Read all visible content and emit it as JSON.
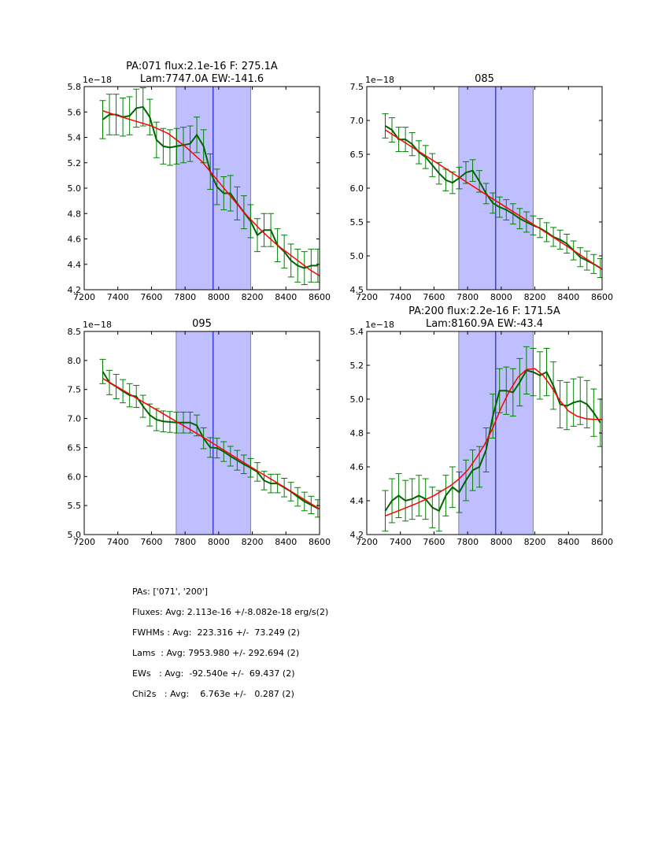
{
  "figure": {
    "summary": [
      "PAs: ['071', '200']",
      "Fluxes: Avg: 2.113e-16 +/-8.082e-18 erg/s(2)",
      "FWHMs : Avg:  223.316 +/-  73.249 (2)",
      "Lams  : Avg: 7953.980 +/- 292.694 (2)",
      "EWs   : Avg:  -92.540e +/-  69.437 (2)",
      "Chi2s   : Avg:    6.763e +/-   0.287 (2)"
    ],
    "colors": {
      "data": "#006400",
      "errorbar": "#008000",
      "fit": "#ff0000",
      "band": "#bfbfff",
      "band_edge": "#8080a0",
      "center_line": "#0000cc"
    }
  },
  "chart_data": [
    {
      "type": "line",
      "title": [
        "PA:071 flux:2.1e-16 F: 275.1A",
        "Lam:7747.0A EW:-141.6"
      ],
      "xlabel": "",
      "ylabel": "",
      "offset_label": "1e−18",
      "xlim": [
        7200,
        8600
      ],
      "ylim": [
        4.2,
        5.8
      ],
      "xticks": [
        7200,
        7400,
        7600,
        7800,
        8000,
        8200,
        8400,
        8600
      ],
      "yticks": [
        "4.2",
        "4.4",
        "4.6",
        "4.8",
        "5.0",
        "5.2",
        "5.4",
        "5.6",
        "5.8"
      ],
      "band": [
        7747,
        8190
      ],
      "center_line": 7967,
      "x": [
        7310,
        7350,
        7390,
        7430,
        7470,
        7510,
        7550,
        7590,
        7630,
        7670,
        7710,
        7750,
        7790,
        7830,
        7870,
        7910,
        7950,
        7990,
        8030,
        8070,
        8110,
        8150,
        8190,
        8230,
        8270,
        8310,
        8350,
        8390,
        8430,
        8470,
        8510,
        8550,
        8590
      ],
      "series": [
        {
          "name": "data",
          "values": [
            5.54,
            5.58,
            5.58,
            5.56,
            5.57,
            5.63,
            5.64,
            5.56,
            5.38,
            5.33,
            5.32,
            5.33,
            5.34,
            5.35,
            5.42,
            5.33,
            5.13,
            5.01,
            4.96,
            4.96,
            4.88,
            4.81,
            4.74,
            4.63,
            4.67,
            4.67,
            4.55,
            4.5,
            4.43,
            4.39,
            4.37,
            4.39,
            4.39
          ],
          "errors": [
            0.15,
            0.16,
            0.16,
            0.15,
            0.15,
            0.15,
            0.15,
            0.14,
            0.14,
            0.14,
            0.14,
            0.14,
            0.14,
            0.14,
            0.14,
            0.13,
            0.14,
            0.14,
            0.13,
            0.14,
            0.13,
            0.13,
            0.13,
            0.13,
            0.13,
            0.13,
            0.13,
            0.13,
            0.13,
            0.13,
            0.13,
            0.13,
            0.13
          ]
        },
        {
          "name": "fit",
          "x": [
            7310,
            7400,
            7500,
            7600,
            7700,
            7750,
            7800,
            7850,
            7900,
            7950,
            8000,
            8050,
            8100,
            8150,
            8200,
            8250,
            8300,
            8350,
            8400,
            8450,
            8500,
            8550,
            8600
          ],
          "values": [
            5.61,
            5.57,
            5.53,
            5.49,
            5.43,
            5.38,
            5.33,
            5.27,
            5.21,
            5.13,
            5.05,
            4.97,
            4.89,
            4.81,
            4.74,
            4.67,
            4.61,
            4.55,
            4.5,
            4.45,
            4.4,
            4.35,
            4.31
          ]
        }
      ]
    },
    {
      "type": "line",
      "title": [
        "085"
      ],
      "offset_label": "1e−18",
      "xlim": [
        7200,
        8600
      ],
      "ylim": [
        4.5,
        7.5
      ],
      "xticks": [
        7200,
        7400,
        7600,
        7800,
        8000,
        8200,
        8400,
        8600
      ],
      "yticks": [
        "4.5",
        "5.0",
        "5.5",
        "6.0",
        "6.5",
        "7.0",
        "7.5"
      ],
      "band": [
        7747,
        8190
      ],
      "center_line": 7967,
      "x": [
        7310,
        7350,
        7390,
        7430,
        7470,
        7510,
        7550,
        7590,
        7630,
        7670,
        7710,
        7750,
        7790,
        7830,
        7870,
        7910,
        7950,
        7990,
        8030,
        8070,
        8110,
        8150,
        8190,
        8230,
        8270,
        8310,
        8350,
        8390,
        8430,
        8470,
        8510,
        8550,
        8590
      ],
      "series": [
        {
          "name": "data",
          "values": [
            6.92,
            6.86,
            6.72,
            6.72,
            6.65,
            6.53,
            6.46,
            6.34,
            6.22,
            6.12,
            6.08,
            6.15,
            6.23,
            6.26,
            6.1,
            5.92,
            5.78,
            5.72,
            5.68,
            5.62,
            5.55,
            5.5,
            5.45,
            5.41,
            5.35,
            5.28,
            5.24,
            5.18,
            5.08,
            4.98,
            4.93,
            4.88,
            4.82
          ],
          "errors": [
            0.18,
            0.18,
            0.18,
            0.18,
            0.17,
            0.17,
            0.17,
            0.17,
            0.16,
            0.16,
            0.16,
            0.16,
            0.16,
            0.16,
            0.16,
            0.15,
            0.15,
            0.15,
            0.15,
            0.15,
            0.15,
            0.15,
            0.14,
            0.14,
            0.14,
            0.14,
            0.14,
            0.14,
            0.14,
            0.14,
            0.14,
            0.14,
            0.14
          ]
        },
        {
          "name": "fit",
          "x": [
            7310,
            7600,
            7900,
            8200,
            8400,
            8600
          ],
          "values": [
            6.86,
            6.4,
            5.92,
            5.45,
            5.13,
            4.8
          ]
        }
      ]
    },
    {
      "type": "line",
      "title": [
        "095"
      ],
      "offset_label": "1e−18",
      "xlim": [
        7200,
        8600
      ],
      "ylim": [
        5.0,
        8.5
      ],
      "xticks": [
        7200,
        7400,
        7600,
        7800,
        8000,
        8200,
        8400,
        8600
      ],
      "yticks": [
        "5.0",
        "5.5",
        "6.0",
        "6.5",
        "7.0",
        "7.5",
        "8.0",
        "8.5"
      ],
      "band": [
        7747,
        8190
      ],
      "center_line": 7967,
      "x": [
        7310,
        7350,
        7390,
        7430,
        7470,
        7510,
        7550,
        7590,
        7630,
        7670,
        7710,
        7750,
        7790,
        7830,
        7870,
        7910,
        7950,
        7990,
        8030,
        8070,
        8110,
        8150,
        8190,
        8230,
        8270,
        8310,
        8350,
        8390,
        8430,
        8470,
        8510,
        8550,
        8590
      ],
      "series": [
        {
          "name": "data",
          "values": [
            7.81,
            7.62,
            7.55,
            7.47,
            7.4,
            7.38,
            7.21,
            7.06,
            6.98,
            6.95,
            6.94,
            6.93,
            6.93,
            6.93,
            6.88,
            6.66,
            6.5,
            6.49,
            6.43,
            6.35,
            6.28,
            6.21,
            6.15,
            6.08,
            5.93,
            5.88,
            5.88,
            5.81,
            5.74,
            5.65,
            5.57,
            5.51,
            5.45
          ],
          "errors": [
            0.21,
            0.21,
            0.21,
            0.2,
            0.2,
            0.19,
            0.19,
            0.19,
            0.19,
            0.18,
            0.18,
            0.18,
            0.18,
            0.18,
            0.18,
            0.18,
            0.17,
            0.17,
            0.17,
            0.17,
            0.17,
            0.16,
            0.16,
            0.16,
            0.16,
            0.16,
            0.16,
            0.16,
            0.16,
            0.16,
            0.16,
            0.15,
            0.15
          ]
        },
        {
          "name": "fit",
          "x": [
            7310,
            7600,
            7900,
            8200,
            8400,
            8600
          ],
          "values": [
            7.69,
            7.2,
            6.69,
            6.15,
            5.8,
            5.44
          ]
        }
      ]
    },
    {
      "type": "line",
      "title": [
        "PA:200 flux:2.2e-16 F: 171.5A",
        "Lam:8160.9A EW:-43.4"
      ],
      "offset_label": "1e−18",
      "xlim": [
        7200,
        8600
      ],
      "ylim": [
        4.2,
        5.4
      ],
      "xticks": [
        7200,
        7400,
        7600,
        7800,
        8000,
        8200,
        8400,
        8600
      ],
      "yticks": [
        "4.2",
        "4.4",
        "4.6",
        "4.8",
        "5.0",
        "5.2",
        "5.4"
      ],
      "band": [
        7747,
        8190
      ],
      "center_line": 7967,
      "x": [
        7310,
        7350,
        7390,
        7430,
        7470,
        7510,
        7550,
        7590,
        7630,
        7670,
        7710,
        7750,
        7790,
        7830,
        7870,
        7910,
        7950,
        7990,
        8030,
        8070,
        8110,
        8150,
        8190,
        8230,
        8270,
        8310,
        8350,
        8390,
        8430,
        8470,
        8510,
        8550,
        8590
      ],
      "series": [
        {
          "name": "data",
          "values": [
            4.34,
            4.4,
            4.43,
            4.4,
            4.41,
            4.43,
            4.41,
            4.36,
            4.34,
            4.43,
            4.48,
            4.45,
            4.52,
            4.58,
            4.6,
            4.7,
            4.9,
            5.05,
            5.05,
            5.04,
            5.1,
            5.17,
            5.16,
            5.14,
            5.16,
            5.08,
            4.97,
            4.96,
            4.98,
            4.99,
            4.97,
            4.92,
            4.86
          ],
          "errors": [
            0.12,
            0.13,
            0.13,
            0.12,
            0.12,
            0.12,
            0.12,
            0.12,
            0.12,
            0.12,
            0.12,
            0.12,
            0.12,
            0.12,
            0.12,
            0.13,
            0.13,
            0.13,
            0.14,
            0.14,
            0.14,
            0.14,
            0.14,
            0.14,
            0.14,
            0.14,
            0.14,
            0.14,
            0.14,
            0.14,
            0.14,
            0.14,
            0.14
          ]
        },
        {
          "name": "fit",
          "x": [
            7310,
            7400,
            7500,
            7600,
            7700,
            7750,
            7800,
            7850,
            7900,
            7950,
            8000,
            8050,
            8100,
            8150,
            8200,
            8250,
            8300,
            8350,
            8400,
            8450,
            8500,
            8550,
            8600
          ],
          "values": [
            4.31,
            4.345,
            4.385,
            4.43,
            4.49,
            4.53,
            4.58,
            4.65,
            4.73,
            4.83,
            4.95,
            5.05,
            5.13,
            5.175,
            5.18,
            5.14,
            5.07,
            4.99,
            4.93,
            4.9,
            4.885,
            4.88,
            4.88
          ]
        }
      ]
    }
  ]
}
